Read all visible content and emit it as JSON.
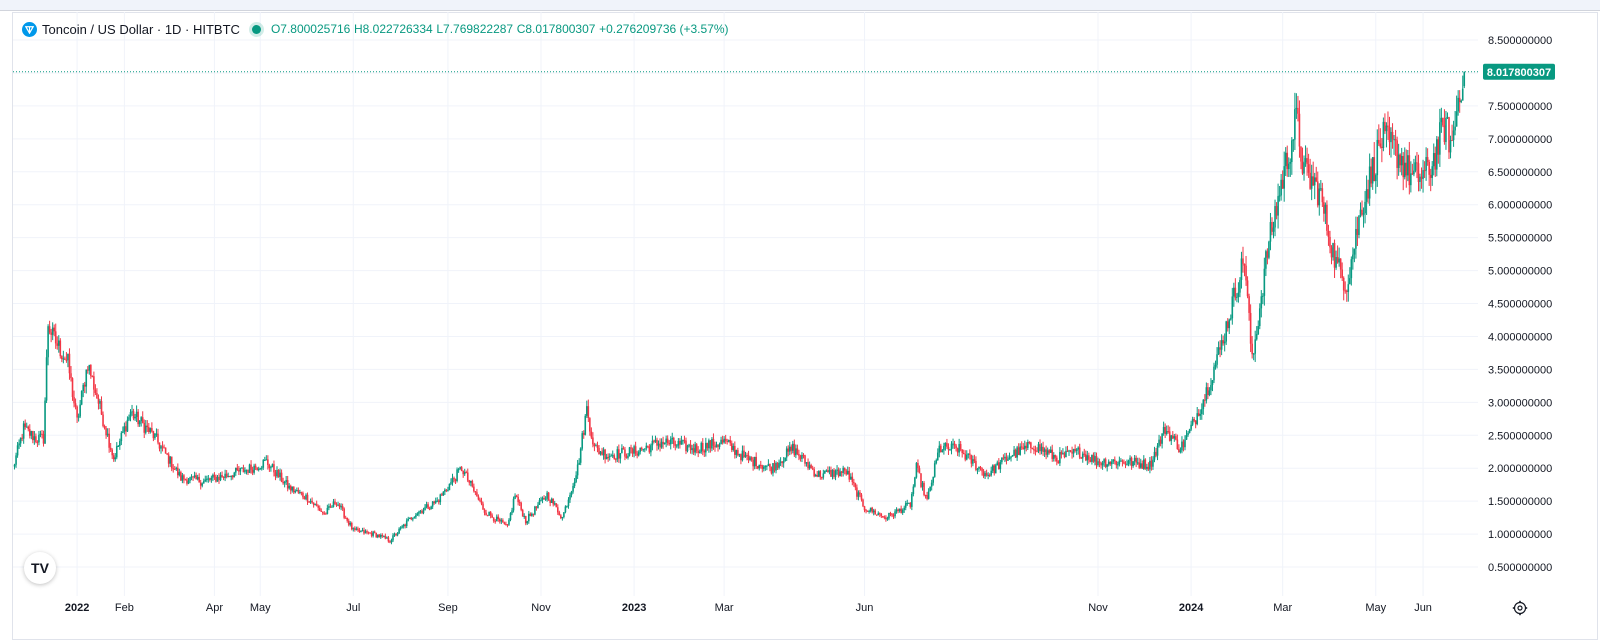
{
  "symbol": {
    "name": "Toncoin / US Dollar · 1D · HITBTC",
    "open_label": "O7.800025716",
    "high_label": "H8.022726334",
    "low_label": "L7.769822287",
    "close_label": "C8.017800307",
    "change_label": "+0.276209736 (+3.57%)"
  },
  "last_price_label": "8.017800307",
  "colors": {
    "up": "#089981",
    "down": "#f23645",
    "grid": "#f0f3fa",
    "axis_text": "#131722"
  },
  "branding": {
    "logo_text": "TV"
  },
  "chart_data": {
    "type": "candlestick",
    "title": "Toncoin / US Dollar · 1D · HITBTC",
    "ylim": [
      0.2,
      8.75
    ],
    "y_ticks": [
      {
        "value": 8.5,
        "label": "8.500000000"
      },
      {
        "value": 8.0,
        "label": "8.000000000"
      },
      {
        "value": 7.5,
        "label": "7.500000000"
      },
      {
        "value": 7.0,
        "label": "7.000000000"
      },
      {
        "value": 6.5,
        "label": "6.500000000"
      },
      {
        "value": 6.0,
        "label": "6.000000000"
      },
      {
        "value": 5.5,
        "label": "5.500000000"
      },
      {
        "value": 5.0,
        "label": "5.000000000"
      },
      {
        "value": 4.5,
        "label": "4.500000000"
      },
      {
        "value": 4.0,
        "label": "4.000000000"
      },
      {
        "value": 3.5,
        "label": "3.500000000"
      },
      {
        "value": 3.0,
        "label": "3.000000000"
      },
      {
        "value": 2.5,
        "label": "2.500000000"
      },
      {
        "value": 2.0,
        "label": "2.000000000"
      },
      {
        "value": 1.5,
        "label": "1.500000000"
      },
      {
        "value": 1.0,
        "label": "1.000000000"
      },
      {
        "value": 0.5,
        "label": "0.500000000"
      }
    ],
    "x_ticks": [
      {
        "date": "2022-01-01",
        "label": "2022",
        "bold": true
      },
      {
        "date": "2022-02-01",
        "label": "Feb"
      },
      {
        "date": "2022-04-01",
        "label": "Apr"
      },
      {
        "date": "2022-05-01",
        "label": "May"
      },
      {
        "date": "2022-07-01",
        "label": "Jul"
      },
      {
        "date": "2022-09-01",
        "label": "Sep"
      },
      {
        "date": "2022-11-01",
        "label": "Nov"
      },
      {
        "date": "2023-01-01",
        "label": "2023",
        "bold": true
      },
      {
        "date": "2023-03-01",
        "label": "Mar"
      },
      {
        "date": "2023-06-01",
        "label": "Jun"
      },
      {
        "date": "2023-11-01",
        "label": "Nov"
      },
      {
        "date": "2024-01-01",
        "label": "2024",
        "bold": true
      },
      {
        "date": "2024-03-01",
        "label": "Mar"
      },
      {
        "date": "2024-05-01",
        "label": "May"
      },
      {
        "date": "2024-06-01",
        "label": "Jun"
      }
    ],
    "anchors": [
      [
        "2021-11-20",
        2.0
      ],
      [
        "2021-11-27",
        2.6
      ],
      [
        "2021-12-05",
        2.45
      ],
      [
        "2021-12-10",
        2.45
      ],
      [
        "2021-12-13",
        4.2
      ],
      [
        "2021-12-16",
        4.0
      ],
      [
        "2021-12-26",
        3.6
      ],
      [
        "2022-01-01",
        2.7
      ],
      [
        "2022-01-08",
        3.6
      ],
      [
        "2022-01-15",
        3.0
      ],
      [
        "2022-01-25",
        2.15
      ],
      [
        "2022-02-05",
        2.85
      ],
      [
        "2022-02-20",
        2.5
      ],
      [
        "2022-03-10",
        1.85
      ],
      [
        "2022-03-25",
        1.8
      ],
      [
        "2022-04-10",
        1.9
      ],
      [
        "2022-04-25",
        2.0
      ],
      [
        "2022-05-05",
        2.1
      ],
      [
        "2022-05-20",
        1.7
      ],
      [
        "2022-06-01",
        1.55
      ],
      [
        "2022-06-12",
        1.3
      ],
      [
        "2022-06-20",
        1.5
      ],
      [
        "2022-07-01",
        1.05
      ],
      [
        "2022-07-15",
        1.0
      ],
      [
        "2022-07-25",
        0.9
      ],
      [
        "2022-08-10",
        1.3
      ],
      [
        "2022-08-25",
        1.5
      ],
      [
        "2022-09-10",
        2.0
      ],
      [
        "2022-09-25",
        1.35
      ],
      [
        "2022-10-10",
        1.1
      ],
      [
        "2022-10-15",
        1.6
      ],
      [
        "2022-10-22",
        1.2
      ],
      [
        "2022-11-05",
        1.6
      ],
      [
        "2022-11-15",
        1.25
      ],
      [
        "2022-11-25",
        2.0
      ],
      [
        "2022-12-01",
        2.9
      ],
      [
        "2022-12-06",
        2.3
      ],
      [
        "2022-12-15",
        2.2
      ],
      [
        "2023-01-01",
        2.25
      ],
      [
        "2023-01-20",
        2.4
      ],
      [
        "2023-02-10",
        2.3
      ],
      [
        "2023-03-01",
        2.4
      ],
      [
        "2023-03-15",
        2.15
      ],
      [
        "2023-04-01",
        2.0
      ],
      [
        "2023-04-15",
        2.3
      ],
      [
        "2023-05-01",
        1.9
      ],
      [
        "2023-05-20",
        1.95
      ],
      [
        "2023-06-01",
        1.4
      ],
      [
        "2023-06-15",
        1.25
      ],
      [
        "2023-07-01",
        1.45
      ],
      [
        "2023-07-05",
        2.0
      ],
      [
        "2023-07-12",
        1.5
      ],
      [
        "2023-07-20",
        2.3
      ],
      [
        "2023-08-01",
        2.3
      ],
      [
        "2023-08-20",
        1.9
      ],
      [
        "2023-09-05",
        2.2
      ],
      [
        "2023-09-20",
        2.35
      ],
      [
        "2023-10-05",
        2.15
      ],
      [
        "2023-10-20",
        2.25
      ],
      [
        "2023-11-01",
        2.1
      ],
      [
        "2023-11-20",
        2.1
      ],
      [
        "2023-12-05",
        2.05
      ],
      [
        "2023-12-15",
        2.6
      ],
      [
        "2023-12-25",
        2.3
      ],
      [
        "2023-12-30",
        2.5
      ],
      [
        "2024-01-10",
        3.1
      ],
      [
        "2024-01-20",
        3.8
      ],
      [
        "2024-01-28",
        4.5
      ],
      [
        "2024-02-05",
        5.2
      ],
      [
        "2024-02-10",
        3.6
      ],
      [
        "2024-02-20",
        5.3
      ],
      [
        "2024-02-28",
        6.2
      ],
      [
        "2024-03-10",
        7.3
      ],
      [
        "2024-03-15",
        6.5
      ],
      [
        "2024-03-25",
        6.2
      ],
      [
        "2024-04-05",
        5.1
      ],
      [
        "2024-04-12",
        4.8
      ],
      [
        "2024-04-22",
        6.0
      ],
      [
        "2024-05-05",
        7.0
      ],
      [
        "2024-05-15",
        6.8
      ],
      [
        "2024-05-25",
        6.4
      ],
      [
        "2024-06-05",
        6.5
      ],
      [
        "2024-06-15",
        7.2
      ],
      [
        "2024-06-20",
        6.9
      ],
      [
        "2024-06-25",
        7.8
      ],
      [
        "2024-06-28",
        8.0178
      ]
    ],
    "last": {
      "date": "2024-06-28",
      "open": 7.800025716,
      "high": 8.022726334,
      "low": 7.769822287,
      "close": 8.017800307
    }
  }
}
